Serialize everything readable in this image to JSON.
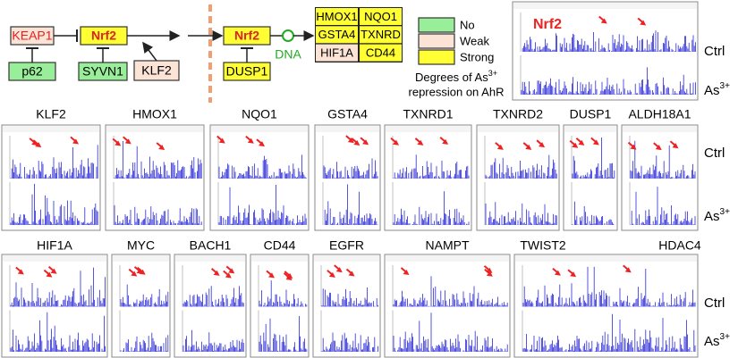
{
  "pathway": {
    "keap1": "KEAP1",
    "nrf2_left": "Nrf2",
    "p62": "p62",
    "syvn1": "SYVN1",
    "klf2": "KLF2",
    "nrf2_right": "Nrf2",
    "dusp1": "DUSP1",
    "dna": "DNA",
    "targets": [
      "HMOX1",
      "NQO1",
      "GSTA4",
      "TXNRD",
      "HIF1A",
      "CD44"
    ]
  },
  "legend": {
    "items": [
      "No",
      "Weak",
      "Strong"
    ],
    "caption_line1": "Degrees of As",
    "caption_sup": "3+",
    "caption_line2": "repression on AhR"
  },
  "nrf2_panel": {
    "title": "Nrf2",
    "ctrl": "Ctrl",
    "treated": "As",
    "treated_sup": "3+"
  },
  "rows": [
    {
      "genes": [
        "KLF2",
        "HMOX1",
        "NQO1",
        "GSTA4",
        "TXNRD1",
        "TXNRD2",
        "DUSP1",
        "ALDH18A1"
      ],
      "ctrl": "Ctrl",
      "treated": "As",
      "treated_sup": "3+"
    },
    {
      "genes": [
        "HIF1A",
        "MYC",
        "BACH1",
        "CD44",
        "EGFR",
        "NAMPT",
        "TWIST2",
        "HDAC4"
      ],
      "ctrl": "Ctrl",
      "treated": "As",
      "treated_sup": "3+"
    }
  ]
}
